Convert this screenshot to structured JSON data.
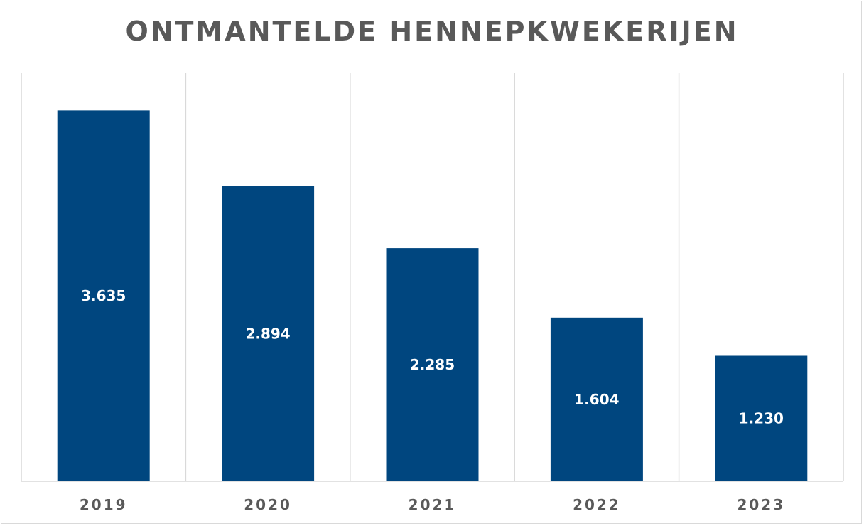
{
  "chart_data": {
    "type": "bar",
    "title": "ONTMANTELDE HENNEPKWEKERIJEN",
    "categories": [
      "2019",
      "2020",
      "2021",
      "2022",
      "2023"
    ],
    "values": [
      3635,
      2894,
      2285,
      1604,
      1230
    ],
    "data_labels": [
      "3.635",
      "2.894",
      "2.285",
      "1.604",
      "1.230"
    ],
    "xlabel": "",
    "ylabel": "",
    "ylim": [
      0,
      4000
    ],
    "grid": "vertical category separators",
    "legend": "none",
    "bar_color": "#00467F",
    "label_color": "#FFFFFF",
    "axis_text_color": "#595959",
    "grid_color": "#D9D9D9"
  }
}
